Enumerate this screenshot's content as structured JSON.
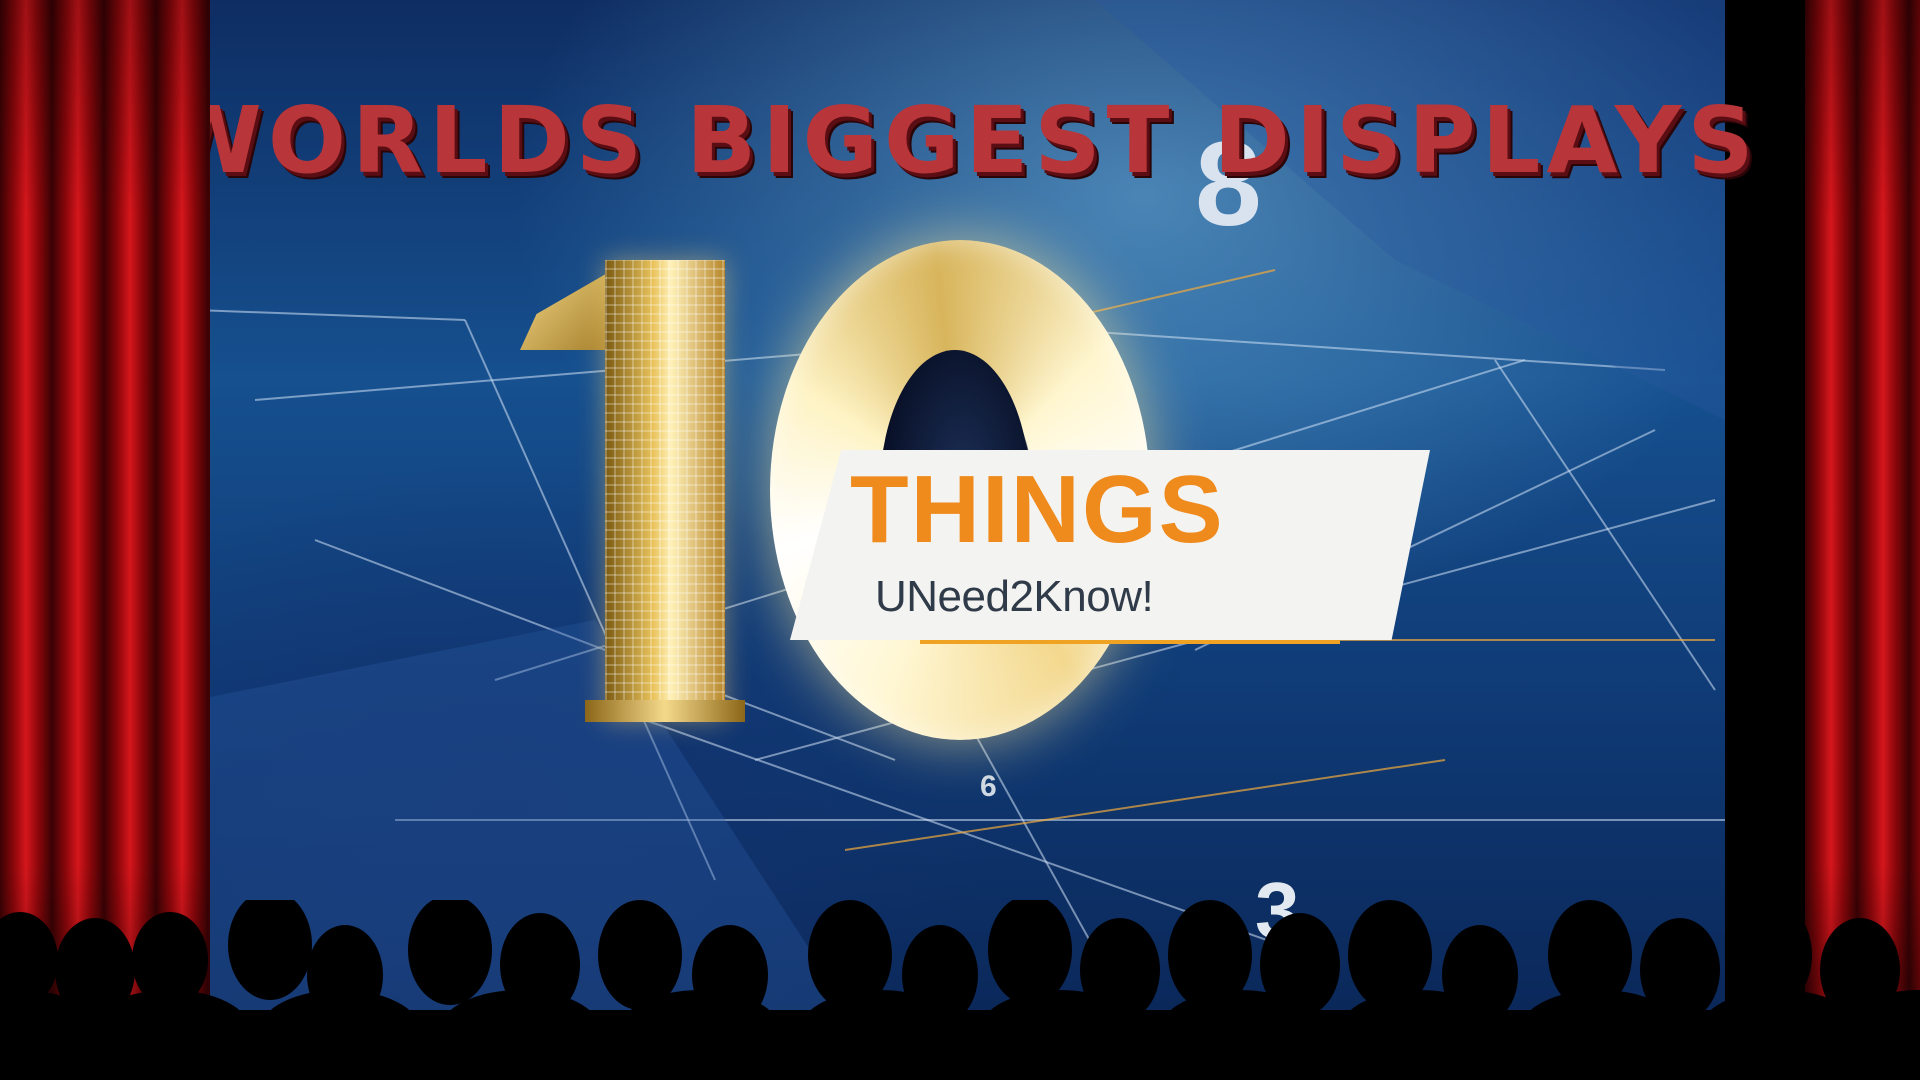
{
  "headline": "WORLDS BIGGEST DISPLAYS",
  "screen": {
    "big_number": "10",
    "card": {
      "line1": "THINGS",
      "line2": "UNeed2Know!"
    },
    "floating_numbers": {
      "top": "8",
      "small": "6",
      "bottom": "3"
    }
  },
  "colors": {
    "headline": "#b8353a",
    "things": "#ef8a1c",
    "curtain": "#c8121a",
    "screen_blue": "#16508f"
  }
}
